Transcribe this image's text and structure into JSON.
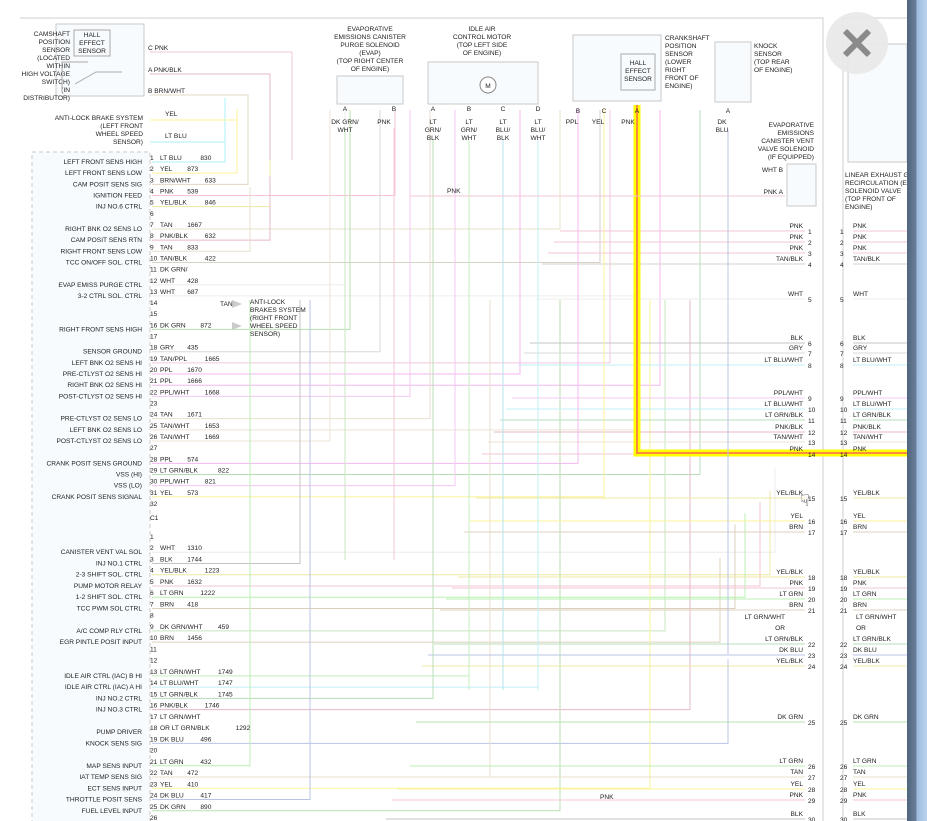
{
  "colors": {
    "highlight_outer": "#ffff00",
    "highlight_inner": "#ff8c3a",
    "border": "#cccccc",
    "wires": {
      "PNK": "#f6c6d6",
      "PNK/BLK": "#e8b8c8",
      "BRN/WHT": "#e0d8c4",
      "YEL": "#fbf39a",
      "LT BLU": "#aef0f6",
      "YEL/BLK": "#ece8a4",
      "TAN": "#e8e0cc",
      "TAN/BLK": "#d6d2c6",
      "DK GRN/WHT": "#c8e4c0",
      "WHT": "#ececec",
      "DK GRN": "#b8e0b0",
      "GRY": "#d8d8d8",
      "TAN/PPL": "#f0c8e0",
      "PPL": "#f4b8f0",
      "PPL/WHT": "#f4c8f4",
      "TAN/WHT": "#ece4d4",
      "LT GRN/BLK": "#b8dcb8",
      "BLK": "#c4c4c4",
      "LT GRN": "#b8f0b0",
      "BRN": "#dcd0bc",
      "LT BLU/WHT": "#c0f0f8",
      "DK BLU": "#b8c4e4",
      "LT GRN/WHT": "#c4eec0",
      "LT BLU/BLK": "#b4e4ee"
    }
  },
  "components": {
    "camshaft": {
      "label": [
        "CAMSHAFT",
        "POSITION",
        "SENSOR",
        "(LOCATED",
        "WITHIN",
        "HIGH VOLTAGE",
        "SWITCH)",
        "(IN",
        "DISTRIBUTOR)"
      ],
      "inner": [
        "HALL",
        "EFFECT",
        "SENSOR"
      ],
      "pins": [
        {
          "pin": "C",
          "color": "PNK"
        },
        {
          "pin": "A",
          "color": "PNK/BLK"
        },
        {
          "pin": "B",
          "color": "BRN/WHT"
        }
      ]
    },
    "abs_left": {
      "label": [
        "ANTI-LOCK BRAKE SYSTEM",
        "(LEFT FRONT",
        "WHEEL SPEED",
        "SENSOR)"
      ],
      "wires": [
        "YEL",
        "LT BLU"
      ]
    },
    "evap_purge": {
      "label": [
        "EVAPORATIVE",
        "EMISSIONS CANISTER",
        "PURGE SOLENOID",
        "(EVAP)",
        "(TOP RIGHT CENTER",
        "OF ENGINE)"
      ],
      "pins": [
        {
          "pin": "A",
          "color": [
            "DK GRN/",
            "WHT"
          ]
        },
        {
          "pin": "B",
          "color": [
            "PNK"
          ]
        }
      ]
    },
    "iac": {
      "label": [
        "IDLE AIR",
        "CONTROL MOTOR",
        "(TOP LEFT SIDE",
        "OF ENGINE)"
      ],
      "motor": "M",
      "pins": [
        {
          "pin": "A",
          "color": [
            "LT",
            "GRN/",
            "BLK"
          ]
        },
        {
          "pin": "B",
          "color": [
            "LT",
            "GRN/",
            "WHT"
          ]
        },
        {
          "pin": "C",
          "color": [
            "LT",
            "BLU/",
            "BLK"
          ]
        },
        {
          "pin": "D",
          "color": [
            "LT",
            "BLU/",
            "WHT"
          ]
        }
      ]
    },
    "crankshaft": {
      "label": [
        "CRANKSHAFT",
        "POSITION",
        "SENSOR",
        "(LOWER",
        "RIGHT",
        "FRONT OF",
        "ENGINE)"
      ],
      "inner": [
        "HALL",
        "EFFECT",
        "SENSOR"
      ],
      "pins": [
        {
          "pin": "B",
          "color": "PPL"
        },
        {
          "pin": "C",
          "color": "YEL"
        },
        {
          "pin": "A",
          "color": "PNK"
        }
      ]
    },
    "knock": {
      "label": [
        "KNOCK",
        "SENSOR",
        "(TOP REAR",
        "OF ENGINE)"
      ],
      "pins": [
        {
          "pin": "A",
          "color": [
            "DK",
            "BLU"
          ]
        }
      ]
    },
    "evap_vent": {
      "label": [
        "EVAPORATIVE",
        "EMISSIONS",
        "CANISTER VENT",
        "VALVE SOLENOID",
        "(IF EQUIPPED)"
      ],
      "pins": [
        {
          "pin": "B",
          "color": "WHT"
        },
        {
          "pin": "A",
          "color": "PNK"
        }
      ]
    },
    "egr": {
      "label": [
        "LINEAR EXHAUST G",
        "RECIRCULATION (E",
        "SOLENOID VALVE",
        "(TOP FRONT OF",
        "ENGINE)"
      ]
    },
    "abs_right": {
      "wire": "TAN",
      "label": [
        "ANTI-LOCK",
        "BRAKES SYSTEM",
        "(RIGHT FRONT",
        "WHEEL SPEED",
        "SENSOR)"
      ]
    },
    "mid_labels": [
      "PNK",
      "PNK"
    ]
  },
  "pcm_c2": {
    "pins": [
      {
        "n": "1",
        "color": "LT BLU",
        "circuit": "830",
        "label": "LEFT FRONT SENS HIGH"
      },
      {
        "n": "2",
        "color": "YEL",
        "circuit": "873",
        "label": "LEFT FRONT SENS LOW"
      },
      {
        "n": "3",
        "color": "BRN/WHT",
        "circuit": "633",
        "label": "CAM POSIT SENS SIG"
      },
      {
        "n": "4",
        "color": "PNK",
        "circuit": "539",
        "label": "IGNITION FEED"
      },
      {
        "n": "5",
        "color": "YEL/BLK",
        "circuit": "846",
        "label": "INJ NO.6 CTRL"
      },
      {
        "n": "6",
        "color": "",
        "circuit": "",
        "label": ""
      },
      {
        "n": "7",
        "color": "TAN",
        "circuit": "1667",
        "label": "RIGHT BNK O2 SENS LO"
      },
      {
        "n": "8",
        "color": "PNK/BLK",
        "circuit": "632",
        "label": "CAM POSIT SENS RTN"
      },
      {
        "n": "9",
        "color": "TAN",
        "circuit": "833",
        "label": "RIGHT FRONT SENS LOW"
      },
      {
        "n": "10",
        "color": "TAN/BLK",
        "circuit": "422",
        "label": "TCC ON/OFF SOL. CTRL"
      },
      {
        "n": "11",
        "color": "DK GRN/",
        "circuit": "",
        "label": ""
      },
      {
        "n": "12",
        "color": "WHT",
        "circuit": "428",
        "label": "EVAP EMISS PURGE CTRL"
      },
      {
        "n": "13",
        "color": "WHT",
        "circuit": "687",
        "label": "3-2 CTRL SOL. CTRL"
      },
      {
        "n": "14",
        "color": "",
        "circuit": "",
        "label": ""
      },
      {
        "n": "15",
        "color": "",
        "circuit": "",
        "label": ""
      },
      {
        "n": "16",
        "color": "DK GRN",
        "circuit": "872",
        "label": "RIGHT FRONT SENS HIGH"
      },
      {
        "n": "17",
        "color": "",
        "circuit": "",
        "label": ""
      },
      {
        "n": "18",
        "color": "GRY",
        "circuit": "435",
        "label": "SENSOR GROUND"
      },
      {
        "n": "19",
        "color": "TAN/PPL",
        "circuit": "1665",
        "label": "LEFT BNK O2 SENS HI"
      },
      {
        "n": "20",
        "color": "PPL",
        "circuit": "1670",
        "label": "PRE-CTLYST O2 SENS HI"
      },
      {
        "n": "21",
        "color": "PPL",
        "circuit": "1666",
        "label": "RIGHT BNK O2 SENS HI"
      },
      {
        "n": "22",
        "color": "PPL/WHT",
        "circuit": "1668",
        "label": "POST-CTLYST O2 SENS HI"
      },
      {
        "n": "23",
        "color": "",
        "circuit": "",
        "label": ""
      },
      {
        "n": "24",
        "color": "TAN",
        "circuit": "1671",
        "label": "PRE-CTLYST O2 SENS LO"
      },
      {
        "n": "25",
        "color": "TAN/WHT",
        "circuit": "1653",
        "label": "LEFT BNK O2 SENS LO"
      },
      {
        "n": "26",
        "color": "TAN/WHT",
        "circuit": "1669",
        "label": "POST-CTLYST O2 SENS LO"
      },
      {
        "n": "27",
        "color": "",
        "circuit": "",
        "label": ""
      },
      {
        "n": "28",
        "color": "PPL",
        "circuit": "574",
        "label": "CRANK POSIT SENS GROUND"
      },
      {
        "n": "29",
        "color": "LT GRN/BLK",
        "circuit": "822",
        "label": "VSS (HI)"
      },
      {
        "n": "30",
        "color": "PPL/WHT",
        "circuit": "821",
        "label": "VSS (LO)"
      },
      {
        "n": "31",
        "color": "YEL",
        "circuit": "573",
        "label": "CRANK POSIT SENS SIGNAL"
      },
      {
        "n": "32",
        "color": "",
        "circuit": "",
        "label": ""
      }
    ]
  },
  "pcm_c1": {
    "connector": "C1",
    "pins": [
      {
        "n": "1",
        "color": "",
        "circuit": "",
        "label": ""
      },
      {
        "n": "2",
        "color": "WHT",
        "circuit": "1310",
        "label": "CANISTER VENT VAL SOL"
      },
      {
        "n": "3",
        "color": "BLK",
        "circuit": "1744",
        "label": "INJ NO.1 CTRL"
      },
      {
        "n": "4",
        "color": "YEL/BLK",
        "circuit": "1223",
        "label": "2-3 SHIFT SOL. CTRL"
      },
      {
        "n": "5",
        "color": "PNK",
        "circuit": "1632",
        "label": "PUMP MOTOR RELAY"
      },
      {
        "n": "6",
        "color": "LT GRN",
        "circuit": "1222",
        "label": "1-2 SHIFT SOL. CTRL"
      },
      {
        "n": "7",
        "color": "BRN",
        "circuit": "418",
        "label": "TCC PWM SOL CTRL"
      },
      {
        "n": "8",
        "color": "",
        "circuit": "",
        "label": ""
      },
      {
        "n": "9",
        "color": "DK GRN/WHT",
        "circuit": "459",
        "label": "A/C COMP RLY CTRL"
      },
      {
        "n": "10",
        "color": "BRN",
        "circuit": "1456",
        "label": "EGR PINTLE POSIT INPUT"
      },
      {
        "n": "11",
        "color": "",
        "circuit": "",
        "label": ""
      },
      {
        "n": "12",
        "color": "",
        "circuit": "",
        "label": ""
      },
      {
        "n": "13",
        "color": "LT GRN/WHT",
        "circuit": "1749",
        "label": "IDLE AIR CTRL (IAC) B HI"
      },
      {
        "n": "14",
        "color": "LT BLU/WHT",
        "circuit": "1747",
        "label": "IDLE AIR CTRL (IAC) A HI"
      },
      {
        "n": "15",
        "color": "LT GRN/BLK",
        "circuit": "1745",
        "label": "INJ NO.2 CTRL"
      },
      {
        "n": "16",
        "color": "PNK/BLK",
        "circuit": "1746",
        "label": "INJ NO.3 CTRL"
      },
      {
        "n": "17",
        "color": "LT GRN/WHT",
        "circuit": "",
        "label": ""
      },
      {
        "n": "18",
        "color": "OR  LT GRN/BLK",
        "circuit": "1292",
        "label": "PUMP DRIVER"
      },
      {
        "n": "19",
        "color": "DK BLU",
        "circuit": "496",
        "label": "KNOCK SENS SIG"
      },
      {
        "n": "20",
        "color": "",
        "circuit": "",
        "label": ""
      },
      {
        "n": "21",
        "color": "LT GRN",
        "circuit": "432",
        "label": "MAP SENS INPUT"
      },
      {
        "n": "22",
        "color": "TAN",
        "circuit": "472",
        "label": "IAT TEMP SENS SIG"
      },
      {
        "n": "23",
        "color": "YEL",
        "circuit": "410",
        "label": "ECT SENS INPUT"
      },
      {
        "n": "24",
        "color": "DK BLU",
        "circuit": "417",
        "label": "THROTTLE POSIT SENS"
      },
      {
        "n": "25",
        "color": "DK GRN",
        "circuit": "890",
        "label": "FUEL LEVEL INPUT"
      },
      {
        "n": "26",
        "color": "",
        "circuit": "",
        "label": ""
      }
    ]
  },
  "splice_pins": [
    {
      "n": "1",
      "color": "PNK"
    },
    {
      "n": "2",
      "color": "PNK"
    },
    {
      "n": "3",
      "color": "PNK"
    },
    {
      "n": "4",
      "color": "TAN/BLK"
    },
    {
      "n": "5",
      "color": "WHT"
    },
    {
      "n": "6",
      "color": "BLK"
    },
    {
      "n": "7",
      "color": "GRY"
    },
    {
      "n": "8",
      "color": "LT BLU/WHT"
    },
    {
      "n": "9",
      "color": "PPL/WHT"
    },
    {
      "n": "10",
      "color": "LT BLU/WHT"
    },
    {
      "n": "11",
      "color": "LT GRN/BLK"
    },
    {
      "n": "12",
      "color": "PNK/BLK"
    },
    {
      "n": "13",
      "color": "TAN/WHT"
    },
    {
      "n": "14",
      "color": "PNK"
    },
    {
      "n": "15",
      "color": "YEL/BLK"
    },
    {
      "n": "16",
      "color": "YEL"
    },
    {
      "n": "17",
      "color": "BRN"
    },
    {
      "n": "18",
      "color": "YEL/BLK"
    },
    {
      "n": "19",
      "color": "PNK"
    },
    {
      "n": "20",
      "color": "LT GRN"
    },
    {
      "n": "21",
      "color": "BRN"
    },
    {
      "n": "22",
      "color": "LT GRN/WHT\nOR\nLT GRN/BLK"
    },
    {
      "n": "23",
      "color": "DK BLU"
    },
    {
      "n": "24",
      "color": "YEL/BLK"
    },
    {
      "n": "25",
      "color": "DK GRN"
    },
    {
      "n": "26",
      "color": "LT GRN"
    },
    {
      "n": "27",
      "color": "TAN"
    },
    {
      "n": "28",
      "color": "YEL"
    },
    {
      "n": "29",
      "color": "PNK"
    },
    {
      "n": "30",
      "color": "BLK"
    }
  ],
  "ui": {
    "close_icon": "close-x-icon",
    "cursor_icon": "hand-pointer-icon"
  }
}
